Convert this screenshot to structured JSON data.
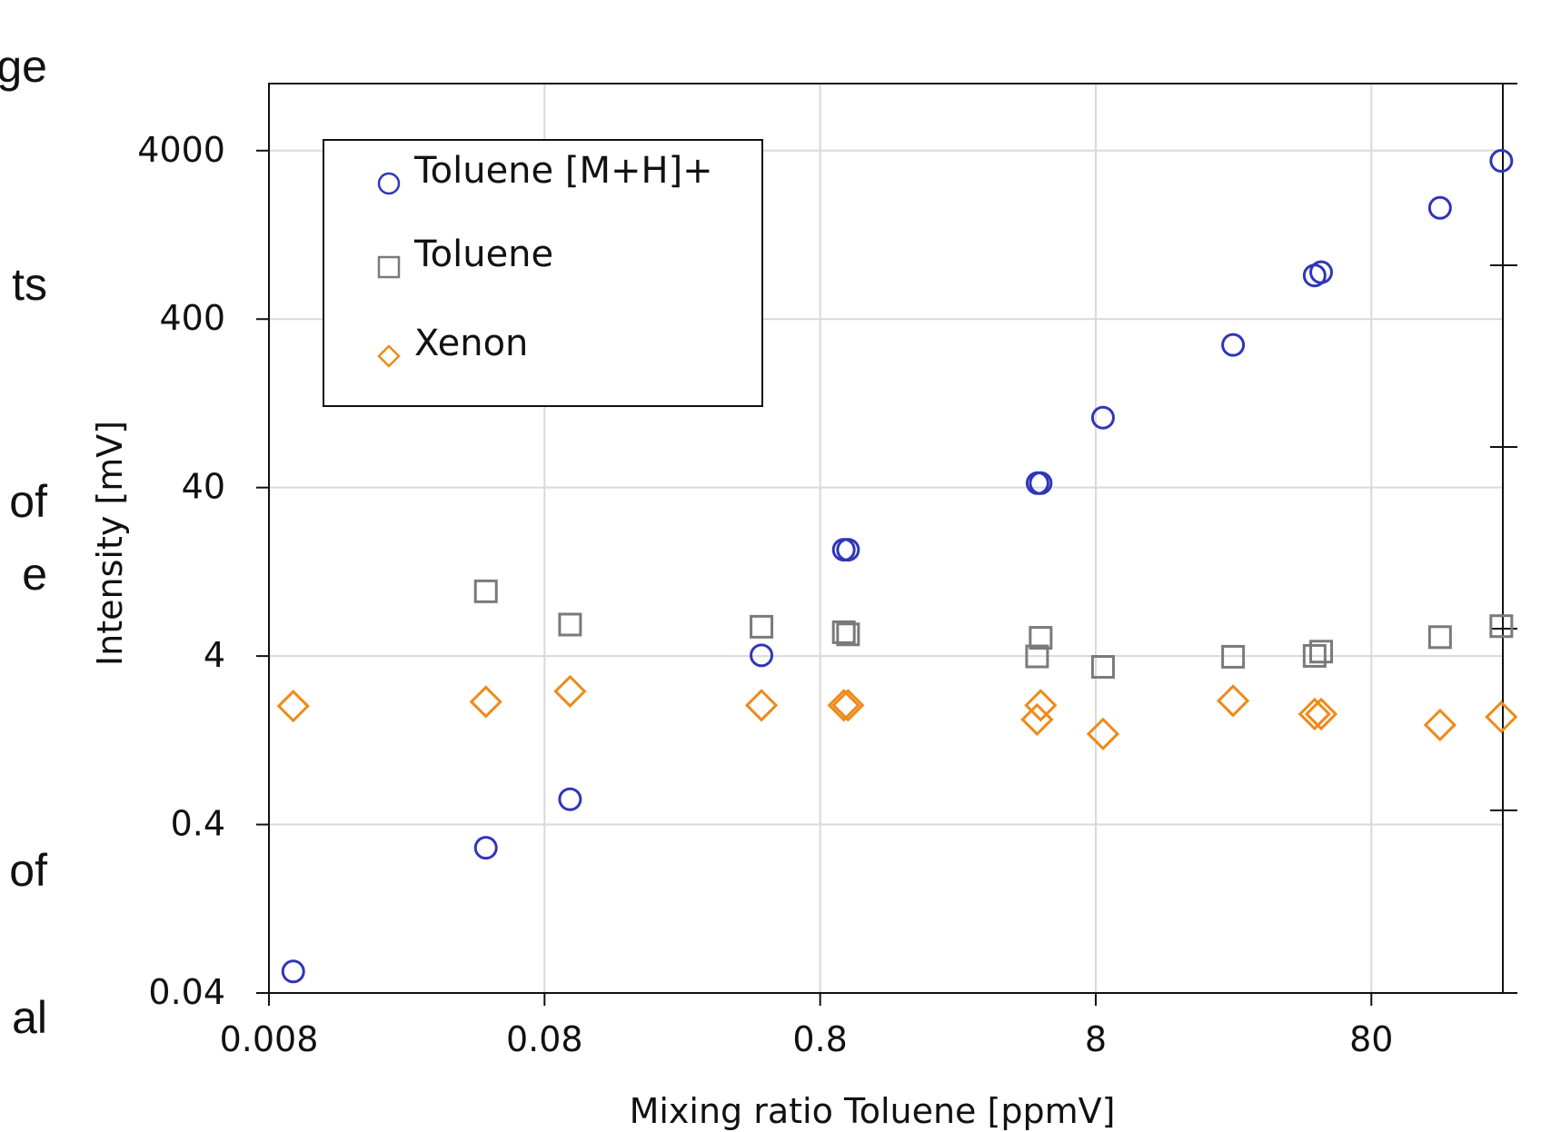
{
  "left_cut_text": [
    "ge",
    "ts",
    "of",
    "e",
    "of",
    "al"
  ],
  "right_cut_text": [
    "(",
    "(",
    "(",
    "(",
    "("
  ],
  "chart_data": {
    "type": "scatter",
    "xlabel": "Mixing ratio Toluene [ppmV]",
    "ylabel": "Intensity [mV]",
    "xscale": "log",
    "yscale": "log",
    "xlim": [
      0.008,
      240
    ],
    "ylim": [
      0.04,
      10000
    ],
    "xticks": [
      0.008,
      0.08,
      0.8,
      8,
      80
    ],
    "xtick_labels": [
      "0.008",
      "0.08",
      "0.8",
      "8",
      "80"
    ],
    "yticks": [
      0.04,
      0.4,
      4,
      40,
      400,
      4000
    ],
    "ytick_labels": [
      "0.04",
      "0.4",
      "4",
      "40",
      "400",
      "4000"
    ],
    "grid": true,
    "legend_position": "top-left",
    "series": [
      {
        "name": "Toluene [M+H]+",
        "marker": "circle",
        "color": "#2f36b8",
        "points": [
          {
            "x": 0.0098,
            "y": 0.0537
          },
          {
            "x": 0.049,
            "y": 0.291
          },
          {
            "x": 0.099,
            "y": 0.565
          },
          {
            "x": 0.49,
            "y": 4.04
          },
          {
            "x": 0.975,
            "y": 17.1
          },
          {
            "x": 1.01,
            "y": 17.1
          },
          {
            "x": 4.92,
            "y": 42.5
          },
          {
            "x": 5.05,
            "y": 42.5
          },
          {
            "x": 8.5,
            "y": 104
          },
          {
            "x": 25.2,
            "y": 281
          },
          {
            "x": 49.8,
            "y": 726
          },
          {
            "x": 52.6,
            "y": 759
          },
          {
            "x": 142,
            "y": 1830
          },
          {
            "x": 237,
            "y": 3480
          }
        ]
      },
      {
        "name": "Toluene",
        "marker": "square",
        "color": "#7a7a7a",
        "points": [
          {
            "x": 0.049,
            "y": 9.69
          },
          {
            "x": 0.099,
            "y": 6.15
          },
          {
            "x": 0.49,
            "y": 5.97
          },
          {
            "x": 0.975,
            "y": 5.54
          },
          {
            "x": 1.01,
            "y": 5.38
          },
          {
            "x": 4.9,
            "y": 3.98
          },
          {
            "x": 5.05,
            "y": 5.13
          },
          {
            "x": 8.5,
            "y": 3.45
          },
          {
            "x": 25.2,
            "y": 3.96
          },
          {
            "x": 49.8,
            "y": 4.01
          },
          {
            "x": 52.6,
            "y": 4.25
          },
          {
            "x": 142,
            "y": 5.18
          },
          {
            "x": 237,
            "y": 6.02
          }
        ]
      },
      {
        "name": "Xenon",
        "marker": "diamond",
        "color": "#ee8a1a",
        "points": [
          {
            "x": 0.0098,
            "y": 2.02
          },
          {
            "x": 0.049,
            "y": 2.14
          },
          {
            "x": 0.099,
            "y": 2.47
          },
          {
            "x": 0.49,
            "y": 2.04
          },
          {
            "x": 0.975,
            "y": 2.04
          },
          {
            "x": 1.01,
            "y": 2.04
          },
          {
            "x": 4.9,
            "y": 1.68
          },
          {
            "x": 5.05,
            "y": 2.04
          },
          {
            "x": 8.5,
            "y": 1.38
          },
          {
            "x": 25.2,
            "y": 2.17
          },
          {
            "x": 49.8,
            "y": 1.81
          },
          {
            "x": 52.6,
            "y": 1.81
          },
          {
            "x": 142,
            "y": 1.56
          },
          {
            "x": 237,
            "y": 1.74
          }
        ]
      }
    ]
  }
}
